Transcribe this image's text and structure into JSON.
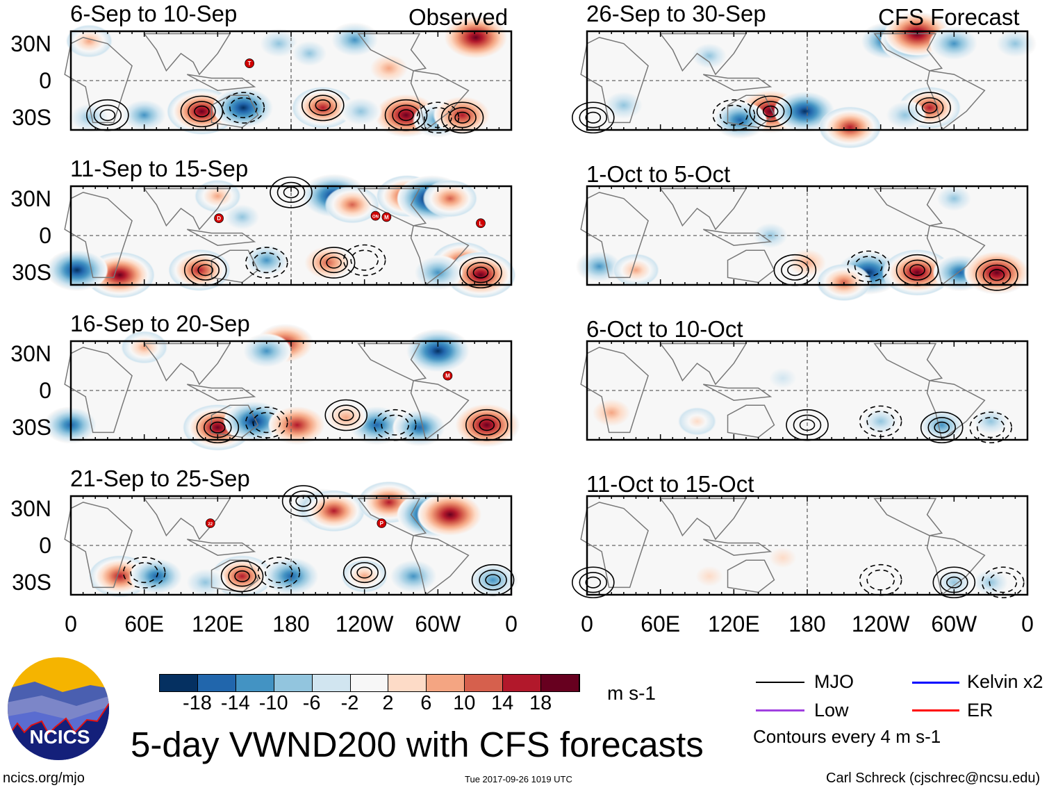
{
  "header": {
    "observed_label": "Observed",
    "forecast_label": "CFS Forecast"
  },
  "lat_labels": [
    "30N",
    "0",
    "30S"
  ],
  "lon_labels": [
    "0",
    "60E",
    "120E",
    "180",
    "120W",
    "60W",
    "0"
  ],
  "panels": [
    {
      "title": "6-Sep to 10-Sep",
      "side": "observed",
      "anomalies": [
        [
          107,
          -25,
          22
        ],
        [
          141,
          -22,
          -18
        ],
        [
          206,
          -22,
          18
        ],
        [
          274,
          -28,
          20
        ],
        [
          237,
          -25,
          -8
        ],
        [
          331,
          35,
          20
        ],
        [
          232,
          33,
          -12
        ],
        [
          60,
          -28,
          -10
        ],
        [
          15,
          -30,
          -8
        ],
        [
          300,
          -32,
          -12
        ],
        [
          320,
          -28,
          16
        ],
        [
          15,
          32,
          10
        ],
        [
          170,
          30,
          -8
        ],
        [
          195,
          22,
          -6
        ],
        [
          260,
          10,
          8
        ]
      ],
      "contours": [
        [
          107,
          -25,
          1
        ],
        [
          206,
          -20,
          1
        ],
        [
          274,
          -28,
          1
        ],
        [
          141,
          -22,
          -1
        ],
        [
          320,
          -30,
          1
        ],
        [
          300,
          -30,
          -1
        ],
        [
          30,
          -28,
          1
        ]
      ],
      "storms": [
        [
          "T",
          146,
          14
        ]
      ]
    },
    {
      "title": "11-Sep to 15-Sep",
      "side": "observed",
      "anomalies": [
        [
          105,
          -28,
          18
        ],
        [
          40,
          -32,
          22
        ],
        [
          5,
          -28,
          -18
        ],
        [
          215,
          32,
          -20
        ],
        [
          230,
          25,
          14
        ],
        [
          275,
          32,
          18
        ],
        [
          295,
          30,
          -22
        ],
        [
          310,
          30,
          14
        ],
        [
          320,
          -22,
          18
        ],
        [
          335,
          -32,
          22
        ],
        [
          300,
          -30,
          -12
        ],
        [
          210,
          -22,
          12
        ],
        [
          160,
          -20,
          -10
        ],
        [
          140,
          15,
          -6
        ],
        [
          120,
          32,
          10
        ]
      ],
      "contours": [
        [
          110,
          -28,
          1
        ],
        [
          215,
          -22,
          1
        ],
        [
          335,
          -30,
          1
        ],
        [
          160,
          -22,
          -1
        ],
        [
          240,
          -20,
          -1
        ],
        [
          180,
          35,
          1
        ]
      ],
      "storms": [
        [
          "D",
          121,
          14
        ],
        [
          "ON",
          249,
          16
        ],
        [
          "M",
          258,
          15
        ],
        [
          "L",
          335,
          10
        ]
      ]
    },
    {
      "title": "16-Sep to 20-Sep",
      "side": "observed",
      "anomalies": [
        [
          120,
          -30,
          22
        ],
        [
          150,
          -25,
          -18
        ],
        [
          185,
          -28,
          16
        ],
        [
          250,
          -28,
          -16
        ],
        [
          285,
          -30,
          -14
        ],
        [
          340,
          -28,
          20
        ],
        [
          0,
          -28,
          -14
        ],
        [
          175,
          38,
          16
        ],
        [
          160,
          32,
          -12
        ],
        [
          300,
          32,
          -20
        ],
        [
          60,
          35,
          10
        ],
        [
          225,
          -22,
          8
        ]
      ],
      "contours": [
        [
          120,
          -30,
          1
        ],
        [
          225,
          -20,
          1
        ],
        [
          340,
          -28,
          1
        ],
        [
          160,
          -26,
          -1
        ],
        [
          265,
          -28,
          -1
        ]
      ],
      "storms": [
        [
          "M",
          308,
          12
        ]
      ]
    },
    {
      "title": "21-Sep to 25-Sep",
      "side": "observed",
      "anomalies": [
        [
          40,
          -25,
          18
        ],
        [
          70,
          -25,
          -14
        ],
        [
          140,
          -25,
          18
        ],
        [
          180,
          -25,
          -16
        ],
        [
          240,
          -25,
          10
        ],
        [
          205,
          30,
          -16
        ],
        [
          215,
          28,
          18
        ],
        [
          260,
          35,
          18
        ],
        [
          295,
          25,
          -22
        ],
        [
          310,
          25,
          20
        ],
        [
          280,
          -25,
          -12
        ],
        [
          345,
          -28,
          -12
        ],
        [
          110,
          -30,
          -8
        ]
      ],
      "contours": [
        [
          140,
          -25,
          1
        ],
        [
          240,
          -22,
          1
        ],
        [
          345,
          -28,
          1
        ],
        [
          60,
          -22,
          -1
        ],
        [
          170,
          -22,
          -1
        ],
        [
          190,
          36,
          1
        ]
      ],
      "storms": [
        [
          "22",
          114,
          18
        ],
        [
          "P",
          254,
          18
        ]
      ]
    },
    {
      "title": "26-Sep to 30-Sep",
      "side": "forecast",
      "anomalies": [
        [
          150,
          -25,
          20
        ],
        [
          125,
          -32,
          -14
        ],
        [
          178,
          -25,
          -18
        ],
        [
          215,
          -38,
          18
        ],
        [
          280,
          -22,
          18
        ],
        [
          260,
          -28,
          -8
        ],
        [
          245,
          32,
          -14
        ],
        [
          265,
          32,
          -18
        ],
        [
          270,
          38,
          20
        ],
        [
          300,
          30,
          -12
        ],
        [
          30,
          -20,
          -8
        ],
        [
          350,
          30,
          -8
        ],
        [
          100,
          20,
          -6
        ]
      ],
      "contours": [
        [
          150,
          -25,
          1
        ],
        [
          280,
          -22,
          1
        ],
        [
          120,
          -28,
          -1
        ],
        [
          5,
          -30,
          1
        ]
      ],
      "storms": []
    },
    {
      "title": "1-Oct to 5-Oct",
      "side": "forecast",
      "anomalies": [
        [
          180,
          -22,
          8
        ],
        [
          230,
          -30,
          -20
        ],
        [
          270,
          -30,
          22
        ],
        [
          305,
          -30,
          -14
        ],
        [
          335,
          -30,
          20
        ],
        [
          210,
          -38,
          14
        ],
        [
          10,
          -25,
          -10
        ],
        [
          40,
          -28,
          10
        ],
        [
          150,
          0,
          -6
        ],
        [
          300,
          30,
          -6
        ]
      ],
      "contours": [
        [
          270,
          -28,
          1
        ],
        [
          335,
          -32,
          1
        ],
        [
          170,
          -28,
          1
        ],
        [
          230,
          -25,
          -1
        ]
      ],
      "storms": []
    },
    {
      "title": "6-Oct to 10-Oct",
      "side": "forecast",
      "anomalies": [
        [
          20,
          -18,
          8
        ],
        [
          240,
          -25,
          -6
        ],
        [
          290,
          -28,
          -10
        ],
        [
          330,
          -25,
          -6
        ],
        [
          90,
          -25,
          6
        ],
        [
          160,
          10,
          -4
        ]
      ],
      "contours": [
        [
          180,
          -28,
          1
        ],
        [
          290,
          -30,
          1
        ],
        [
          240,
          -25,
          -1
        ],
        [
          330,
          -30,
          -1
        ]
      ],
      "storms": []
    },
    {
      "title": "11-Oct to 15-Oct",
      "side": "forecast",
      "anomalies": [
        [
          300,
          -30,
          -6
        ],
        [
          330,
          -30,
          -6
        ],
        [
          160,
          -10,
          4
        ],
        [
          100,
          -25,
          4
        ]
      ],
      "contours": [
        [
          5,
          -30,
          1
        ],
        [
          300,
          -30,
          1
        ],
        [
          240,
          -28,
          -1
        ],
        [
          340,
          -30,
          -1
        ]
      ],
      "storms": []
    }
  ],
  "colorbar": {
    "colors": [
      "#053061",
      "#2166ac",
      "#4393c3",
      "#92c5de",
      "#d1e5f0",
      "#f7f7f7",
      "#fddbc7",
      "#f4a582",
      "#d6604d",
      "#b2182b",
      "#67001f"
    ],
    "labels": [
      "-18",
      "-14",
      "-10",
      "-6",
      "-2",
      "2",
      "6",
      "10",
      "14",
      "18"
    ],
    "units": "m s-1"
  },
  "legend": {
    "mjo": "MJO",
    "kelvin": "Kelvin x2",
    "low": "Low",
    "er": "ER",
    "contours_note": "Contours every 4 m s-1",
    "colors": {
      "mjo": "#000000",
      "kelvin": "#0000ff",
      "low": "#a040e0",
      "er": "#ff0000"
    }
  },
  "footer": {
    "title": "5-day VWND200 with CFS forecasts",
    "url": "ncics.org/mjo",
    "timestamp": "Tue 2017-09-26 1019 UTC",
    "author": "Carl Schreck (cjschrec@ncsu.edu)"
  },
  "logo": {
    "text": "NCICS"
  }
}
